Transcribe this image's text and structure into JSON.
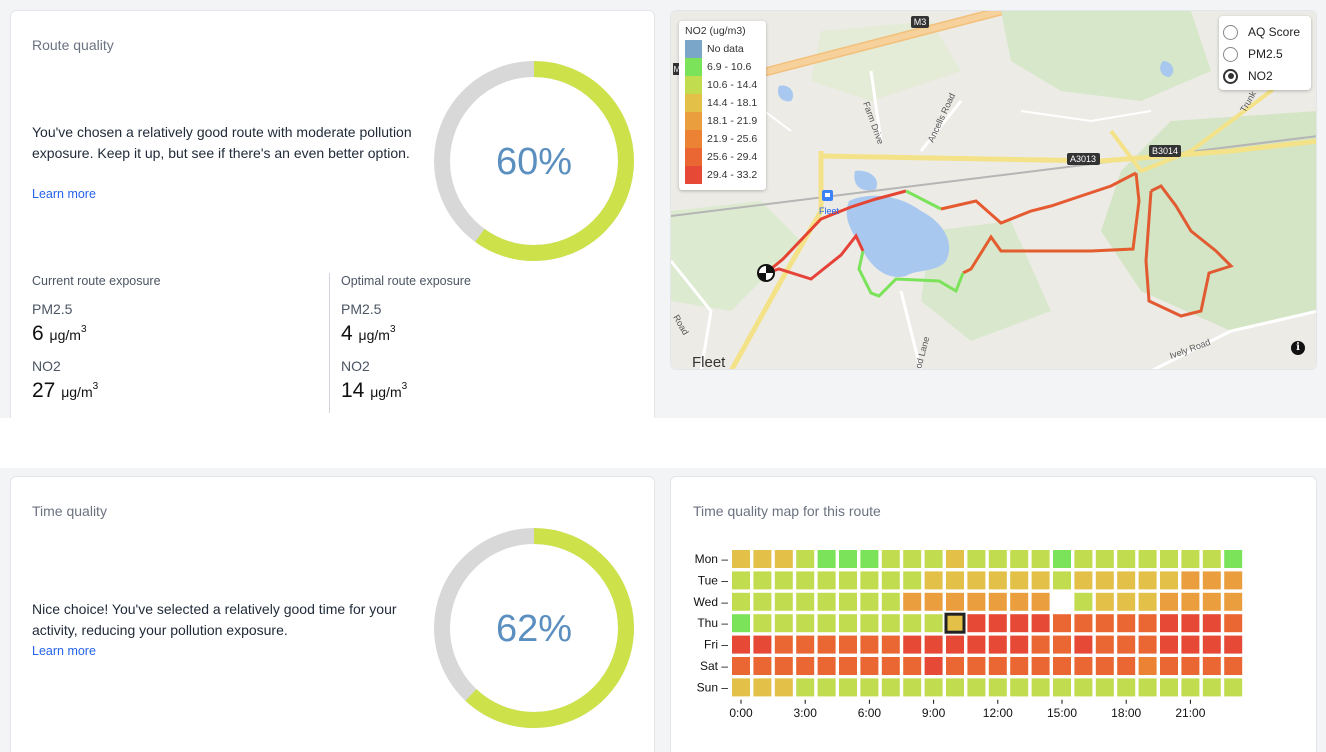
{
  "route": {
    "title": "Route quality",
    "description": "You've chosen a relatively good route with moderate pollution exposure. Keep it up, but see if there's an even better option.",
    "learn_more": "Learn more",
    "score_text": "60%",
    "score": 60,
    "current": {
      "heading": "Current route exposure",
      "pm25_label": "PM2.5",
      "pm25_value": "6",
      "pm25_unit": "μg/m",
      "no2_label": "NO2",
      "no2_value": "27",
      "no2_unit": "μg/m"
    },
    "optimal": {
      "heading": "Optimal route exposure",
      "pm25_label": "PM2.5",
      "pm25_value": "4",
      "pm25_unit": "μg/m",
      "no2_label": "NO2",
      "no2_value": "14",
      "no2_unit": "μg/m"
    },
    "unit_exp": "3"
  },
  "map": {
    "legend_title": "NO2 (ug/m3)",
    "legend": [
      {
        "label": "No data",
        "color": "#7aa6c9"
      },
      {
        "label": "6.9 - 10.6",
        "color": "#7be35a"
      },
      {
        "label": "10.6 - 14.4",
        "color": "#c1dc4f"
      },
      {
        "label": "14.4 - 18.1",
        "color": "#e3c048"
      },
      {
        "label": "18.1 - 21.9",
        "color": "#eb9e3d"
      },
      {
        "label": "21.9 - 25.6",
        "color": "#ec8233"
      },
      {
        "label": "25.6 - 29.4",
        "color": "#ea6733"
      },
      {
        "label": "29.4 - 33.2",
        "color": "#e64a36"
      }
    ],
    "layers": [
      {
        "label": "AQ Score",
        "selected": false
      },
      {
        "label": "PM2.5",
        "selected": false
      },
      {
        "label": "NO2",
        "selected": true
      }
    ],
    "labels": {
      "m3": "M3",
      "m": "M",
      "a3013": "A3013",
      "b3014": "B3014",
      "farm_drive": "Farm Drive",
      "ancells_road": "Ancells Road",
      "trunk": "Trunk",
      "fleet_station": "Fleet",
      "fleet_town": "Fleet",
      "road": "Road",
      "od_lane": "od Lane",
      "ively_road": "Ively Road"
    },
    "info_icon": "i"
  },
  "time": {
    "title": "Time quality",
    "description": "Nice choice! You've selected a relatively good time for your activity, reducing your pollution exposure.",
    "learn_more": "Learn more",
    "score_text": "62%",
    "score": 62
  },
  "heatmap": {
    "title": "Time quality map for this route",
    "colors": {
      "g": "#7be35a",
      "y": "#c1dc4f",
      "o": "#e3c048",
      "O": "#eb9e3d",
      "r": "#ec8233",
      "R": "#ea6733",
      "D": "#e64a36",
      "w": "#ffffff"
    },
    "selected": {
      "day": "Thu",
      "hour": 10
    },
    "chart_data": {
      "type": "heatmap",
      "days": [
        "Mon",
        "Tue",
        "Wed",
        "Thu",
        "Fri",
        "Sat",
        "Sun"
      ],
      "x_ticks": [
        "0:00",
        "3:00",
        "6:00",
        "9:00",
        "12:00",
        "15:00",
        "18:00",
        "21:00"
      ],
      "grid": [
        "oooygggyyyoyyyygyyyyyyyg",
        "yyyyyyyyyooooooyoooooOOO",
        "yyyyyyyyOOOOOOOwyoooOOOO",
        "gyyyyyyyyyoDDDDRRRRRDDDR",
        "DDRRRRRRDDDDDDRRDRRRDDDD",
        "RRRRRRRRRDRRRRRRRRRrRRRR",
        "oooyyyyyyyyyyyyyyyyyyyyy"
      ]
    }
  }
}
